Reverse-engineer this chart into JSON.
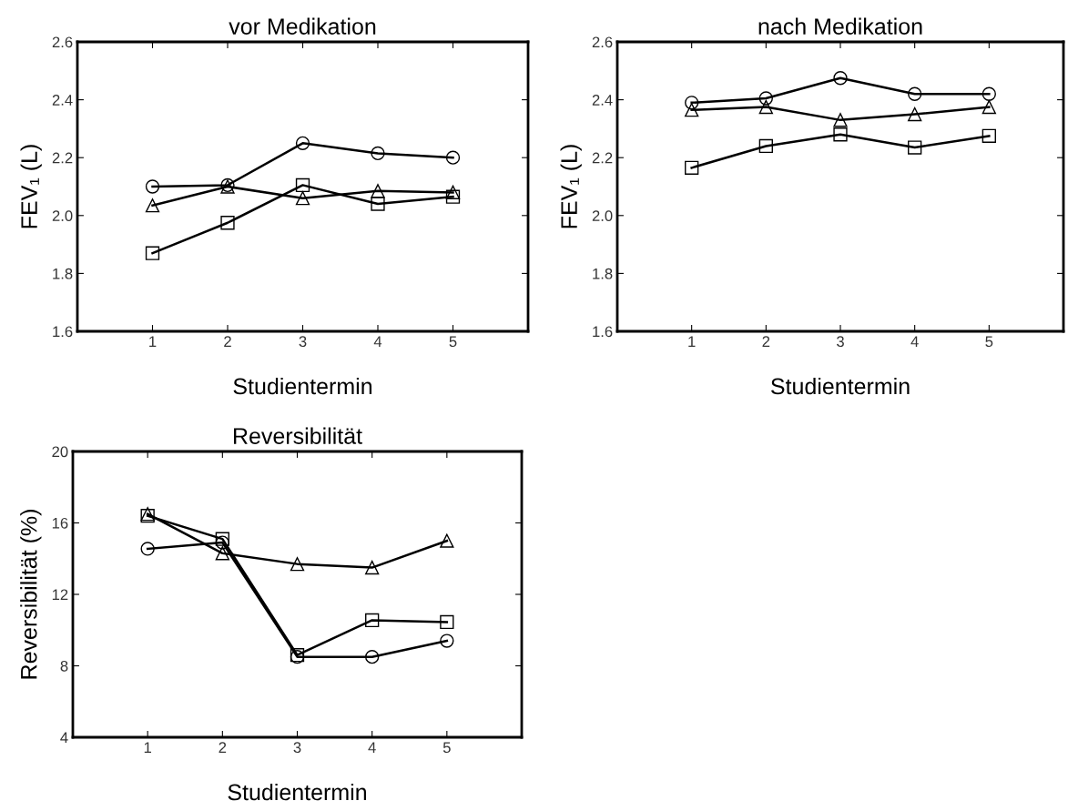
{
  "chart_data": [
    {
      "type": "line",
      "title": "vor Medikation",
      "xlabel": "Studientermin",
      "ylabel": "FEV₁ (L)",
      "x": [
        1,
        2,
        3,
        4,
        5
      ],
      "xlim": [
        0,
        6
      ],
      "xticks": [
        1,
        2,
        3,
        4,
        5
      ],
      "ylim": [
        1.6,
        2.6
      ],
      "yticks": [
        1.6,
        1.8,
        {
          "value": 2,
          "label": "2.0"
        },
        2.2,
        2.4,
        2.6
      ],
      "grid": false,
      "line_style": "solid",
      "series": [
        {
          "color": "#000000",
          "marker": "circle",
          "values": [
            2.1,
            2.105,
            2.25,
            2.215,
            2.2
          ]
        },
        {
          "color": "#000000",
          "marker": "triangle",
          "values": [
            2.035,
            2.1,
            2.06,
            2.085,
            2.08
          ]
        },
        {
          "color": "#000000",
          "marker": "square",
          "values": [
            1.87,
            1.975,
            2.105,
            2.04,
            2.065
          ]
        }
      ]
    },
    {
      "type": "line",
      "title": "nach Medikation",
      "xlabel": "Studientermin",
      "ylabel": "FEV₁ (L)",
      "x": [
        1,
        2,
        3,
        4,
        5
      ],
      "xlim": [
        0,
        6
      ],
      "xticks": [
        1,
        2,
        3,
        4,
        5
      ],
      "ylim": [
        1.6,
        2.6
      ],
      "yticks": [
        1.6,
        1.8,
        {
          "value": 2,
          "label": "2.0"
        },
        2.2,
        2.4,
        2.6
      ],
      "grid": false,
      "line_style": "solid",
      "series": [
        {
          "color": "#000000",
          "marker": "circle",
          "values": [
            2.39,
            2.405,
            2.475,
            2.42,
            2.42
          ]
        },
        {
          "color": "#000000",
          "marker": "triangle",
          "values": [
            2.365,
            2.375,
            2.33,
            2.35,
            2.375
          ]
        },
        {
          "color": "#000000",
          "marker": "square",
          "values": [
            2.165,
            2.24,
            2.28,
            2.235,
            2.275
          ]
        }
      ]
    },
    {
      "type": "line",
      "title": "Reversibilität",
      "xlabel": "Studientermin",
      "ylabel": "Reversibilität (%)",
      "x": [
        1,
        2,
        3,
        4,
        5
      ],
      "xlim": [
        0,
        6
      ],
      "xticks": [
        1,
        2,
        3,
        4,
        5
      ],
      "ylim": [
        4,
        20
      ],
      "yticks": [
        4,
        8,
        12,
        16,
        20
      ],
      "grid": false,
      "line_style": "solid",
      "series": [
        {
          "color": "#000000",
          "marker": "circle",
          "values": [
            14.55,
            14.9,
            8.5,
            8.5,
            9.4
          ]
        },
        {
          "color": "#000000",
          "marker": "triangle",
          "values": [
            16.5,
            14.3,
            13.7,
            13.5,
            15.0
          ]
        },
        {
          "color": "#000000",
          "marker": "square",
          "values": [
            16.4,
            15.1,
            8.6,
            10.55,
            10.45
          ]
        }
      ]
    }
  ]
}
